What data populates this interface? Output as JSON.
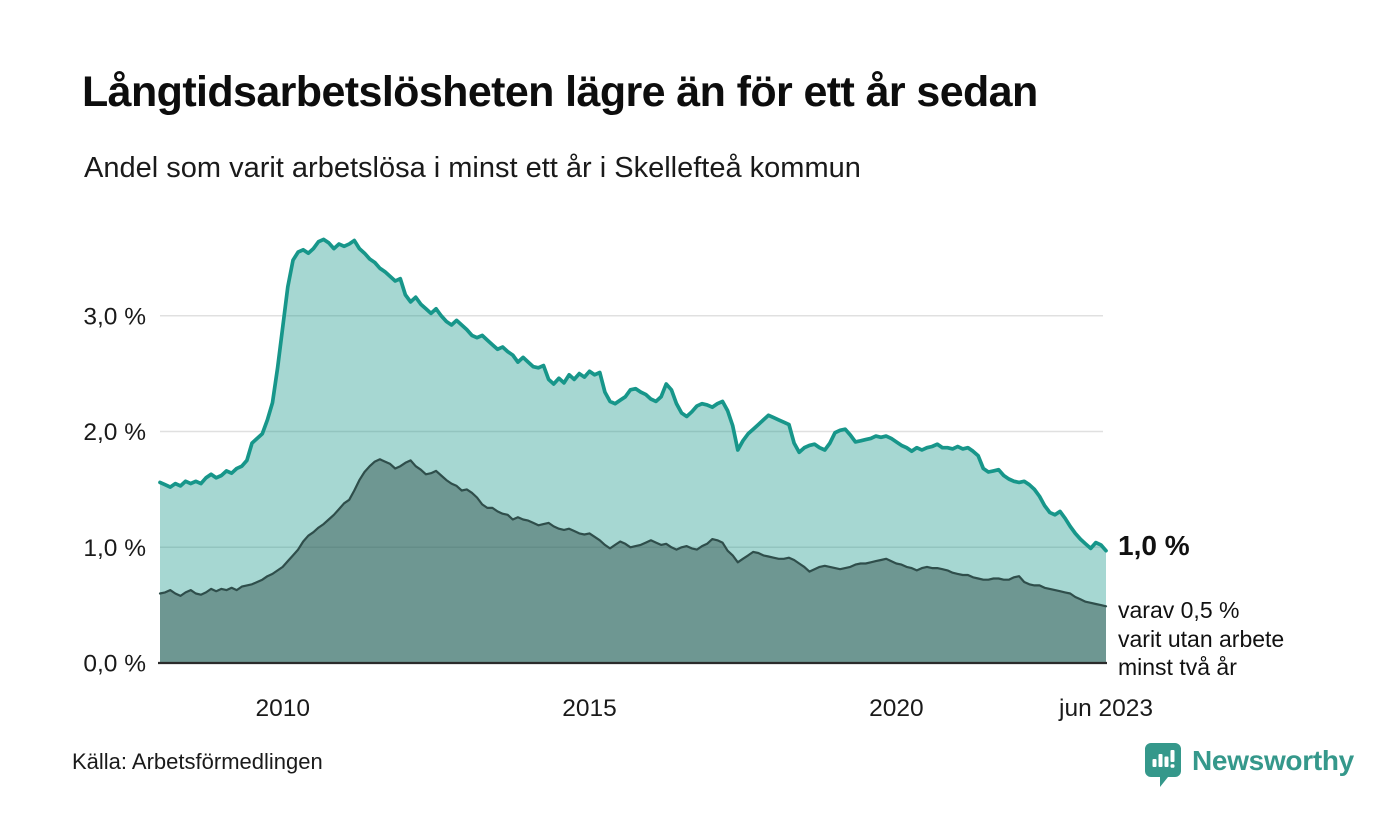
{
  "header": {
    "title": "Långtidsarbetslösheten lägre än för ett år sedan",
    "subtitle": "Andel som varit arbetslösa i minst ett år i Skellefteå kommun"
  },
  "annotations": {
    "total_label": "1,0 %",
    "sub_line1": "varav 0,5 %",
    "sub_line2": "varit utan arbete",
    "sub_line3": "minst två år"
  },
  "footer": {
    "source": "Källa: Arbetsförmedlingen",
    "logo_text": "Newsworthy"
  },
  "colors": {
    "teal_line": "#17968a",
    "teal_fill": "rgba(24,152,139,0.385)",
    "dark_line": "#2f4e4b",
    "dark_fill": "rgba(47,78,75,0.47)",
    "gridline": "#e0e0e0",
    "axis_line": "#2b2b2b",
    "tick_text": "#1a1a1a",
    "logo_teal": "#35988b"
  },
  "chart_data": {
    "type": "area",
    "title": "Långtidsarbetslösheten lägre än för ett år sedan",
    "subtitle": "Andel som varit arbetslösa i minst ett år i Skellefteå kommun",
    "unit": "%",
    "x_start": 2008.0,
    "x_step_years": 0.08333,
    "ylim": [
      0,
      3.85
    ],
    "grid": "horizontal",
    "x_ticks": [
      {
        "label": "2010",
        "year": 2010.0
      },
      {
        "label": "2015",
        "year": 2015.0
      },
      {
        "label": "2020",
        "year": 2020.0
      },
      {
        "label": "jun 2023",
        "year": 2023.417
      }
    ],
    "y_ticks": [
      {
        "label": "0,0 %",
        "value": 0
      },
      {
        "label": "1,0 %",
        "value": 1
      },
      {
        "label": "2,0 %",
        "value": 2
      },
      {
        "label": "3,0 %",
        "value": 3
      }
    ],
    "series": [
      {
        "name": "Andel arbetslösa minst ett år",
        "end_label": "1,0 %",
        "values": [
          1.56,
          1.54,
          1.52,
          1.55,
          1.53,
          1.57,
          1.55,
          1.57,
          1.55,
          1.6,
          1.63,
          1.6,
          1.62,
          1.66,
          1.64,
          1.68,
          1.7,
          1.75,
          1.9,
          1.94,
          1.98,
          2.1,
          2.25,
          2.55,
          2.9,
          3.25,
          3.48,
          3.55,
          3.57,
          3.54,
          3.58,
          3.64,
          3.66,
          3.63,
          3.58,
          3.62,
          3.6,
          3.62,
          3.65,
          3.58,
          3.54,
          3.49,
          3.46,
          3.41,
          3.38,
          3.34,
          3.3,
          3.32,
          3.18,
          3.12,
          3.16,
          3.1,
          3.06,
          3.02,
          3.06,
          3.0,
          2.95,
          2.92,
          2.96,
          2.92,
          2.88,
          2.83,
          2.81,
          2.83,
          2.79,
          2.75,
          2.71,
          2.73,
          2.69,
          2.66,
          2.6,
          2.64,
          2.6,
          2.56,
          2.55,
          2.57,
          2.45,
          2.41,
          2.46,
          2.42,
          2.49,
          2.45,
          2.5,
          2.47,
          2.52,
          2.49,
          2.51,
          2.34,
          2.26,
          2.24,
          2.27,
          2.3,
          2.36,
          2.37,
          2.34,
          2.32,
          2.28,
          2.26,
          2.3,
          2.41,
          2.36,
          2.24,
          2.16,
          2.13,
          2.17,
          2.22,
          2.24,
          2.23,
          2.21,
          2.24,
          2.26,
          2.18,
          2.05,
          1.84,
          1.92,
          1.98,
          2.02,
          2.06,
          2.1,
          2.14,
          2.12,
          2.1,
          2.08,
          2.06,
          1.9,
          1.82,
          1.86,
          1.88,
          1.89,
          1.86,
          1.84,
          1.9,
          1.99,
          2.01,
          2.02,
          1.97,
          1.91,
          1.92,
          1.93,
          1.94,
          1.96,
          1.95,
          1.96,
          1.94,
          1.91,
          1.88,
          1.86,
          1.83,
          1.86,
          1.84,
          1.86,
          1.87,
          1.89,
          1.86,
          1.86,
          1.85,
          1.87,
          1.85,
          1.86,
          1.83,
          1.79,
          1.68,
          1.65,
          1.66,
          1.67,
          1.62,
          1.59,
          1.57,
          1.56,
          1.57,
          1.54,
          1.5,
          1.44,
          1.36,
          1.3,
          1.28,
          1.31,
          1.25,
          1.18,
          1.12,
          1.07,
          1.03,
          0.99,
          1.04,
          1.02,
          0.97
        ]
      },
      {
        "name": "varav utan arbete minst två år",
        "end_label": "0,5 %",
        "values": [
          0.6,
          0.61,
          0.63,
          0.6,
          0.58,
          0.61,
          0.63,
          0.6,
          0.59,
          0.61,
          0.64,
          0.62,
          0.64,
          0.63,
          0.65,
          0.63,
          0.66,
          0.67,
          0.68,
          0.7,
          0.72,
          0.75,
          0.77,
          0.8,
          0.83,
          0.88,
          0.93,
          0.98,
          1.05,
          1.1,
          1.13,
          1.17,
          1.2,
          1.24,
          1.28,
          1.33,
          1.38,
          1.41,
          1.49,
          1.58,
          1.65,
          1.7,
          1.74,
          1.76,
          1.74,
          1.72,
          1.68,
          1.7,
          1.73,
          1.75,
          1.7,
          1.67,
          1.63,
          1.64,
          1.66,
          1.62,
          1.58,
          1.55,
          1.53,
          1.49,
          1.5,
          1.47,
          1.43,
          1.37,
          1.34,
          1.34,
          1.31,
          1.29,
          1.28,
          1.24,
          1.26,
          1.24,
          1.23,
          1.21,
          1.19,
          1.2,
          1.21,
          1.18,
          1.16,
          1.15,
          1.16,
          1.14,
          1.12,
          1.11,
          1.12,
          1.09,
          1.06,
          1.02,
          0.99,
          1.02,
          1.05,
          1.03,
          1.0,
          1.01,
          1.02,
          1.04,
          1.06,
          1.04,
          1.02,
          1.03,
          1.0,
          0.98,
          1.0,
          1.01,
          0.99,
          0.98,
          1.01,
          1.03,
          1.07,
          1.06,
          1.04,
          0.97,
          0.93,
          0.87,
          0.9,
          0.93,
          0.96,
          0.95,
          0.93,
          0.92,
          0.91,
          0.9,
          0.9,
          0.91,
          0.89,
          0.86,
          0.83,
          0.79,
          0.81,
          0.83,
          0.84,
          0.83,
          0.82,
          0.81,
          0.82,
          0.83,
          0.85,
          0.86,
          0.86,
          0.87,
          0.88,
          0.89,
          0.9,
          0.88,
          0.86,
          0.85,
          0.83,
          0.82,
          0.8,
          0.82,
          0.83,
          0.82,
          0.82,
          0.81,
          0.8,
          0.78,
          0.77,
          0.76,
          0.76,
          0.74,
          0.73,
          0.72,
          0.72,
          0.73,
          0.73,
          0.72,
          0.72,
          0.74,
          0.75,
          0.7,
          0.68,
          0.67,
          0.67,
          0.65,
          0.64,
          0.63,
          0.62,
          0.61,
          0.6,
          0.57,
          0.55,
          0.53,
          0.52,
          0.51,
          0.5,
          0.49
        ]
      }
    ]
  }
}
